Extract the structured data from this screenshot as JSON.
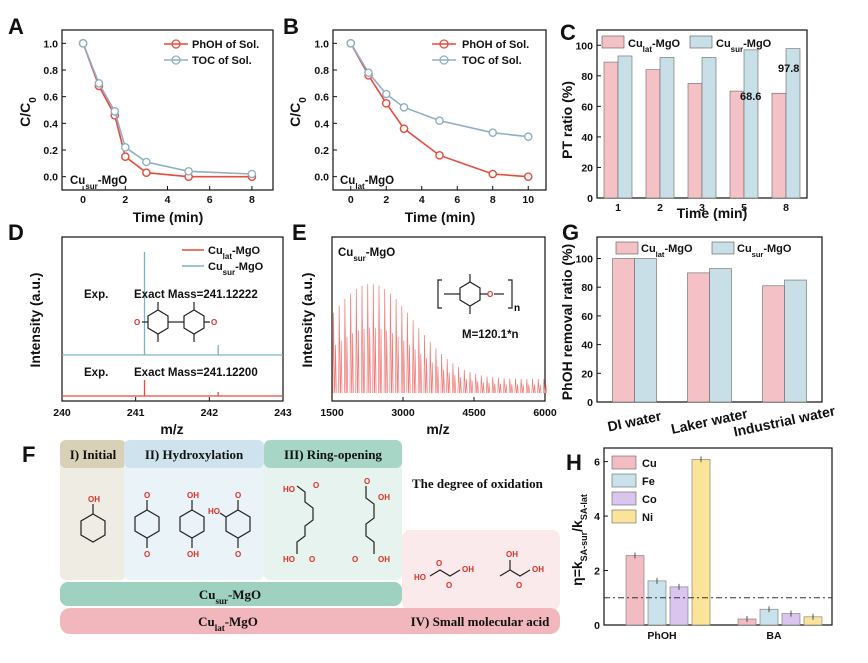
{
  "chart_data": [
    {
      "panel": "A",
      "type": "line",
      "xlabel": "Time (min)",
      "ylabel": "C/C",
      "ylabel_sub": "0",
      "xlim": [
        -1,
        9
      ],
      "ylim": [
        -0.1,
        1.1
      ],
      "xticks": [
        "0",
        "2",
        "4",
        "6",
        "8"
      ],
      "yticks": [
        "0.0",
        "0.2",
        "0.4",
        "0.6",
        "0.8",
        "1.0"
      ],
      "annotation": {
        "main": "Cu",
        "sub": "sur",
        "rest": "-MgO"
      },
      "series": [
        {
          "name": "PhOH of Sol.",
          "color": "#e84a3c",
          "x": [
            0,
            0.75,
            1.5,
            2,
            3,
            5,
            8
          ],
          "y": [
            1.0,
            0.68,
            0.46,
            0.15,
            0.03,
            0.0,
            0.0
          ]
        },
        {
          "name": "TOC of Sol.",
          "color": "#8fb0c4",
          "x": [
            0,
            0.75,
            1.5,
            2,
            3,
            5,
            8
          ],
          "y": [
            1.0,
            0.7,
            0.49,
            0.22,
            0.11,
            0.04,
            0.02
          ]
        }
      ]
    },
    {
      "panel": "B",
      "type": "line",
      "xlabel": "Time (min)",
      "ylabel": "C/C",
      "ylabel_sub": "0",
      "xlim": [
        -1,
        11
      ],
      "ylim": [
        -0.1,
        1.1
      ],
      "xticks": [
        "0",
        "2",
        "4",
        "6",
        "8",
        "10"
      ],
      "yticks": [
        "0.0",
        "0.2",
        "0.4",
        "0.6",
        "0.8",
        "1.0"
      ],
      "annotation": {
        "main": "Cu",
        "sub": "lat",
        "rest": "-MgO"
      },
      "series": [
        {
          "name": "PhOH of Sol.",
          "color": "#e84a3c",
          "x": [
            0,
            1,
            2,
            3,
            5,
            8,
            10
          ],
          "y": [
            1.0,
            0.76,
            0.55,
            0.36,
            0.16,
            0.02,
            0.0
          ]
        },
        {
          "name": "TOC of Sol.",
          "color": "#8fb0c4",
          "x": [
            0,
            1,
            2,
            3,
            5,
            8,
            10
          ],
          "y": [
            1.0,
            0.78,
            0.62,
            0.52,
            0.42,
            0.33,
            0.3
          ]
        }
      ]
    },
    {
      "panel": "C",
      "type": "bar",
      "xlabel": "Time (min)",
      "ylabel": "PT ratio (%)",
      "ylim": [
        0,
        110
      ],
      "categories": [
        "1",
        "2",
        "3",
        "5",
        "8"
      ],
      "yticks": [
        "0",
        "20",
        "40",
        "60",
        "80",
        "100"
      ],
      "series": [
        {
          "name": "Cu",
          "sub": "lat",
          "rest": "-MgO",
          "values": [
            89,
            84,
            75,
            70,
            68.6
          ]
        },
        {
          "name": "Cu",
          "sub": "sur",
          "rest": "-MgO",
          "values": [
            93,
            92,
            92,
            97,
            97.8
          ]
        }
      ],
      "labels": {
        "lat_last": "68.6",
        "sur_last": "97.8"
      }
    },
    {
      "panel": "D",
      "type": "line",
      "xlabel": "m/z",
      "ylabel": "Intensity (a.u.)",
      "xlim": [
        240,
        243
      ],
      "xticks": [
        "240",
        "241",
        "242",
        "243"
      ],
      "series": [
        {
          "name": "Cu",
          "sub": "lat",
          "rest": "-MgO",
          "color": "#e84a3c",
          "peaks_mz": [
            241.12,
            242.12
          ]
        },
        {
          "name": "Cu",
          "sub": "sur",
          "rest": "-MgO",
          "color": "#7ab3c6",
          "peaks_mz": [
            241.12,
            242.12
          ]
        }
      ],
      "annot_top": {
        "exp": "Exp.",
        "mass": "Exact Mass=241.12222"
      },
      "annot_bottom": {
        "exp": "Exp.",
        "mass": "Exact Mass=241.12200"
      }
    },
    {
      "panel": "E",
      "type": "line",
      "xlabel": "m/z",
      "ylabel": "Intensity (a.u.)",
      "xlim": [
        1500,
        6000
      ],
      "xticks": [
        "1500",
        "3000",
        "4500",
        "6000"
      ],
      "annotation": {
        "main": "Cu",
        "sub": "sur",
        "rest": "-MgO"
      },
      "formula": "M=120.1*n",
      "polymer_n": "n"
    },
    {
      "panel": "G",
      "type": "bar",
      "ylabel": "PhOH removal ratio (%)",
      "ylim": [
        0,
        115
      ],
      "categories": [
        "DI water",
        "Laker water",
        "Industrial water"
      ],
      "yticks": [
        "0",
        "20",
        "40",
        "60",
        "80",
        "100"
      ],
      "series": [
        {
          "name": "Cu",
          "sub": "lat",
          "rest": "-MgO",
          "values": [
            100,
            90,
            81
          ]
        },
        {
          "name": "Cu",
          "sub": "sur",
          "rest": "-MgO",
          "values": [
            100,
            93,
            85
          ]
        }
      ]
    },
    {
      "panel": "H",
      "type": "bar",
      "ylabel_main": "η=k",
      "ylabel_sub1": "SA-sur",
      "ylabel_mid": "/k",
      "ylabel_sub2": "SA-lat",
      "ylim": [
        0,
        6.5
      ],
      "categories": [
        "PhOH",
        "BA"
      ],
      "yticks": [
        "0",
        "2",
        "4",
        "6"
      ],
      "series": [
        {
          "name": "Cu",
          "color": "#f2bcc2",
          "values": [
            2.55,
            0.22
          ]
        },
        {
          "name": "Fe",
          "color": "#c9e2ec",
          "values": [
            1.62,
            0.58
          ]
        },
        {
          "name": "Co",
          "color": "#d9c5ee",
          "values": [
            1.4,
            0.42
          ]
        },
        {
          "name": "Ni",
          "color": "#fbe49a",
          "values": [
            6.08,
            0.3
          ]
        }
      ],
      "reference_line": 1.0
    }
  ],
  "panel_letters": [
    "A",
    "B",
    "C",
    "D",
    "E",
    "F",
    "G",
    "H"
  ],
  "scheme": {
    "stage1": "I) Initial",
    "stage2": "II) Hydroxylation",
    "stage3": "III) Ring-opening",
    "stage4": "IV) Small molecular acid",
    "degree": "The degree of oxidation",
    "band_sur": {
      "main": "Cu",
      "sub": "sur",
      "rest": "-MgO"
    },
    "band_lat": {
      "main": "Cu",
      "sub": "lat",
      "rest": "-MgO"
    },
    "atom_labels": {
      "oh": "OH",
      "o": "O",
      "ho": "HO"
    }
  },
  "colors": {
    "red_line": "#e84a3c",
    "blue_line": "#8fb0c4",
    "bar_lat": "#f4c2c6",
    "bar_sur": "#c9dfe8"
  }
}
